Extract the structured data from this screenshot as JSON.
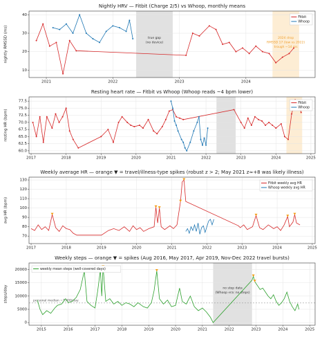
{
  "chart_data": [
    {
      "type": "line",
      "title": "Nightly HRV — Fitbit (Charge 2/5) vs Whoop, monthly means",
      "ylabel": "nightly RMSSD (ms)",
      "xlim": [
        2020.74,
        2025.04
      ],
      "xticks": [
        2021,
        2022,
        2023,
        2024
      ],
      "ylim": [
        6,
        42
      ],
      "yticks": [
        10,
        20,
        30,
        40
      ],
      "grid": true,
      "legend": "upper right",
      "marker": "dot",
      "spans": [
        {
          "x": [
            2022.35,
            2022.9
          ],
          "color": "#d9d9d9",
          "label": [
            "true gap",
            "(no device)"
          ]
        },
        {
          "x": [
            2024.4,
            2024.8
          ],
          "color": "#fde9c9",
          "label": [
            "2024 drop",
            "RMSSD 17 (low vs 2022)",
            "trough ~14 ms"
          ],
          "text_color": "#f0a030"
        }
      ],
      "series": [
        {
          "name": "Fitbit",
          "color": "#d62728",
          "x": [
            2020.85,
            2020.95,
            2021.05,
            2021.15,
            2021.25,
            2021.35,
            2021.45,
            2023.1,
            2023.2,
            2023.3,
            2023.45,
            2023.55,
            2023.65,
            2023.75,
            2023.85,
            2023.95,
            2024.05,
            2024.15,
            2024.25,
            2024.35,
            2024.45,
            2024.55,
            2024.65,
            2024.72
          ],
          "values": [
            26,
            35,
            23,
            25,
            8,
            26,
            20.5,
            18,
            30,
            28.5,
            34,
            32,
            24,
            25,
            20,
            22,
            19,
            23,
            20,
            19,
            14,
            17,
            19,
            22
          ]
        },
        {
          "name": "Whoop",
          "color": "#1f77b4",
          "x": [
            2021.1,
            2021.2,
            2021.3,
            2021.4,
            2021.5,
            2021.6,
            2021.7,
            2021.8,
            2021.9,
            2022.0,
            2022.1,
            2022.2,
            2022.25,
            2022.3
          ],
          "values": [
            33,
            32,
            35,
            30,
            40,
            30,
            27,
            25,
            31,
            34,
            33,
            31,
            37,
            27
          ]
        }
      ]
    },
    {
      "type": "line",
      "title": "Resting heart rate — Fitbit vs Whoop (Whoop reads ~4 bpm lower)",
      "ylabel": "resting HR (bpm)",
      "xlim": [
        2016.94,
        2025.12
      ],
      "xticks": [
        2017,
        2018,
        2019,
        2020,
        2021,
        2022,
        2023,
        2024,
        2025
      ],
      "ylim": [
        59,
        79
      ],
      "yticks": [
        {
          "value": 60,
          "label": "60.0"
        },
        {
          "value": 62.5,
          "label": "62.5"
        },
        {
          "value": 65,
          "label": "65.0"
        },
        {
          "value": 67.5,
          "label": "67.5"
        },
        {
          "value": 70,
          "label": "70.0"
        },
        {
          "value": 72.5,
          "label": "72.5"
        },
        {
          "value": 75,
          "label": "75.0"
        },
        {
          "value": 77.5,
          "label": "77.5"
        }
      ],
      "grid": true,
      "legend": "upper right",
      "marker": "dot",
      "spans": [
        {
          "x": [
            2022.3,
            2022.85
          ],
          "color": "#d9d9d9"
        },
        {
          "x": [
            2024.3,
            2024.75
          ],
          "color": "#fde9c9"
        }
      ],
      "series": [
        {
          "name": "Fitbit",
          "color": "#d62728",
          "x": [
            2017.05,
            2017.15,
            2017.25,
            2017.35,
            2017.45,
            2017.6,
            2017.7,
            2017.8,
            2017.9,
            2018.0,
            2018.1,
            2018.2,
            2018.35,
            2019.0,
            2019.2,
            2019.35,
            2019.5,
            2019.6,
            2019.75,
            2019.85,
            2019.95,
            2020.1,
            2020.2,
            2020.35,
            2020.5,
            2020.6,
            2020.75,
            2020.85,
            2020.95,
            2021.05,
            2021.15,
            2021.25,
            2021.35,
            2022.8,
            2023.0,
            2023.1,
            2023.2,
            2023.3,
            2023.4,
            2023.5,
            2023.6,
            2023.7,
            2023.8,
            2023.9,
            2024.0,
            2024.15,
            2024.25,
            2024.35,
            2024.45,
            2024.55,
            2024.65,
            2024.72
          ],
          "values": [
            70,
            65,
            72,
            63,
            72,
            68,
            73,
            70,
            72,
            75,
            67,
            64,
            61,
            65,
            67.5,
            63,
            70,
            72,
            70,
            69,
            68.5,
            69,
            68,
            71,
            67,
            66,
            68.5,
            71,
            74,
            74.5,
            72,
            71.5,
            71,
            74.5,
            70,
            68,
            71.5,
            69,
            72,
            71,
            70.5,
            69,
            70,
            69,
            68,
            69.5,
            65,
            64,
            73,
            78,
            76.5,
            73.5
          ]
        },
        {
          "name": "Whoop",
          "color": "#1f77b4",
          "x": [
            2021.0,
            2021.05,
            2021.1,
            2021.15,
            2021.2,
            2021.3,
            2021.35,
            2021.4,
            2021.45,
            2021.55,
            2021.65,
            2021.75,
            2021.8,
            2021.85,
            2021.9,
            2021.95,
            2022.0,
            2022.05
          ],
          "values": [
            77.5,
            75,
            70.5,
            69,
            67,
            64,
            63,
            61,
            60,
            63,
            67,
            70,
            72,
            64,
            62,
            64.5,
            62,
            68
          ]
        }
      ]
    },
    {
      "type": "line",
      "title": "Weekly average HR — orange ▼ = travel/illness-type spikes (robust z > 2; May 2021 z≈+8 was likely illness)",
      "ylabel": "avg HR (bpm)",
      "xlim": [
        2016.94,
        2025.08
      ],
      "xticks": [
        2017,
        2018,
        2019,
        2020,
        2021,
        2022,
        2023,
        2024,
        2025
      ],
      "ylim": [
        62,
        133
      ],
      "yticks": [
        70,
        80,
        90,
        100,
        110,
        120,
        130
      ],
      "grid": true,
      "legend": "upper right",
      "series": [
        {
          "name": "Fitbit weekly avg HR",
          "color": "#d62728",
          "x": [
            2017.0,
            2017.1,
            2017.2,
            2017.3,
            2017.4,
            2017.5,
            2017.6,
            2017.7,
            2017.8,
            2017.9,
            2018.0,
            2018.1,
            2018.2,
            2018.3,
            2019.0,
            2019.2,
            2019.35,
            2019.5,
            2019.65,
            2019.8,
            2019.9,
            2020.0,
            2020.1,
            2020.2,
            2020.35,
            2020.5,
            2020.55,
            2020.6,
            2020.65,
            2020.7,
            2020.8,
            2020.95,
            2021.05,
            2021.15,
            2021.25,
            2021.3,
            2021.35,
            2021.4,
            2022.9,
            2022.95,
            2023.05,
            2023.15,
            2023.3,
            2023.4,
            2023.5,
            2023.6,
            2023.75,
            2023.9,
            2024.0,
            2024.1,
            2024.2,
            2024.3,
            2024.35,
            2024.45,
            2024.5,
            2024.55,
            2024.65
          ],
          "values": [
            78,
            76,
            82,
            77,
            80,
            76,
            93,
            79,
            75,
            81,
            78,
            77,
            73,
            71,
            71,
            76,
            78,
            76,
            80,
            75,
            81,
            77,
            79,
            75,
            78,
            80,
            101,
            84,
            100,
            80,
            77,
            81,
            78,
            82,
            107,
            128,
            130,
            107,
            81,
            79,
            82,
            77,
            80,
            92,
            79,
            77,
            82,
            78,
            80,
            76,
            82,
            91,
            80,
            85,
            93,
            84,
            82
          ]
        },
        {
          "name": "Whoop weekly avg HR",
          "color": "#1f77b4",
          "x": [
            2021.4,
            2021.45,
            2021.5,
            2021.55,
            2021.6,
            2021.65,
            2021.7,
            2021.75,
            2021.8,
            2021.85,
            2021.9,
            2021.95,
            2022.0,
            2022.05,
            2022.1,
            2022.15,
            2022.2
          ],
          "values": [
            75,
            78,
            73,
            80,
            76,
            82,
            75,
            84,
            72,
            79,
            81,
            74,
            80,
            86,
            88,
            82,
            88
          ]
        }
      ],
      "spikes": {
        "color": "#f39c12",
        "x": [
          2017.6,
          2020.55,
          2020.65,
          2021.25,
          2021.35,
          2023.4,
          2024.3,
          2024.5
        ],
        "values": [
          93,
          101,
          100,
          107,
          130,
          92,
          91,
          93
        ]
      }
    },
    {
      "type": "line",
      "title": "Weekly steps — orange ▼ = spikes (Aug 2016, May 2017, Apr 2019, Nov-Dec 2022 travel bursts)",
      "ylabel": "steps/day",
      "xlim": [
        2014.54,
        2025.2
      ],
      "xticks": [
        2015,
        2016,
        2017,
        2018,
        2019,
        2020,
        2021,
        2022,
        2023,
        2024,
        2025
      ],
      "ylim": [
        -1000,
        22500
      ],
      "yticks": [
        0,
        5000,
        10000,
        15000,
        20000
      ],
      "grid": true,
      "legend": "upper left",
      "spans": [
        {
          "x": [
            2021.4,
            2022.85
          ],
          "color": "#d9d9d9",
          "label": [
            "no step data",
            "(Whoop era: no steps)"
          ]
        }
      ],
      "hlines": [
        {
          "value": 7400,
          "color": "#999999",
          "label": "personal median ~7,400/day"
        }
      ],
      "series": [
        {
          "name": "weekly mean steps (well-covered days)",
          "color": "#2ca02c",
          "x": [
            2014.85,
            2014.95,
            2015.05,
            2015.2,
            2015.35,
            2015.5,
            2015.6,
            2015.75,
            2015.9,
            2016.0,
            2016.15,
            2016.3,
            2016.45,
            2016.6,
            2016.7,
            2016.85,
            2017.0,
            2017.1,
            2017.2,
            2017.25,
            2017.3,
            2017.4,
            2017.55,
            2017.7,
            2017.85,
            2018.0,
            2018.15,
            2018.3,
            2018.45,
            2018.6,
            2018.8,
            2018.95,
            2019.1,
            2019.2,
            2019.3,
            2019.4,
            2019.55,
            2019.7,
            2019.85,
            2020.0,
            2020.15,
            2020.25,
            2020.4,
            2020.55,
            2020.7,
            2020.85,
            2021.0,
            2021.15,
            2021.3,
            2021.4,
            2022.85,
            2022.9,
            2022.95,
            2023.05,
            2023.15,
            2023.25,
            2023.35,
            2023.45,
            2023.55,
            2023.65,
            2023.75,
            2023.85,
            2023.95,
            2024.05,
            2024.15,
            2024.25,
            2024.35,
            2024.45,
            2024.55,
            2024.6
          ],
          "values": [
            8500,
            5000,
            3000,
            4500,
            3500,
            5500,
            6500,
            7000,
            9000,
            7500,
            8000,
            9500,
            12500,
            19500,
            8000,
            6500,
            5500,
            12000,
            20000,
            10000,
            21000,
            8000,
            9000,
            7000,
            8000,
            6500,
            7500,
            7000,
            6000,
            7500,
            6000,
            5500,
            7500,
            12000,
            19500,
            9000,
            7000,
            8500,
            6000,
            6500,
            13000,
            8000,
            7000,
            10000,
            6000,
            4500,
            5500,
            4000,
            2000,
            0,
            16000,
            17500,
            15500,
            14000,
            12500,
            13000,
            11500,
            10000,
            9000,
            10500,
            8000,
            6500,
            7500,
            9000,
            11500,
            8000,
            6000,
            4500,
            7000,
            5000
          ]
        }
      ],
      "spikes": {
        "color": "#f39c12",
        "x": [
          2016.6,
          2017.2,
          2017.3,
          2019.3,
          2022.9,
          2022.95
        ],
        "values": [
          19500,
          20000,
          21000,
          19500,
          17500,
          15500
        ]
      }
    }
  ]
}
